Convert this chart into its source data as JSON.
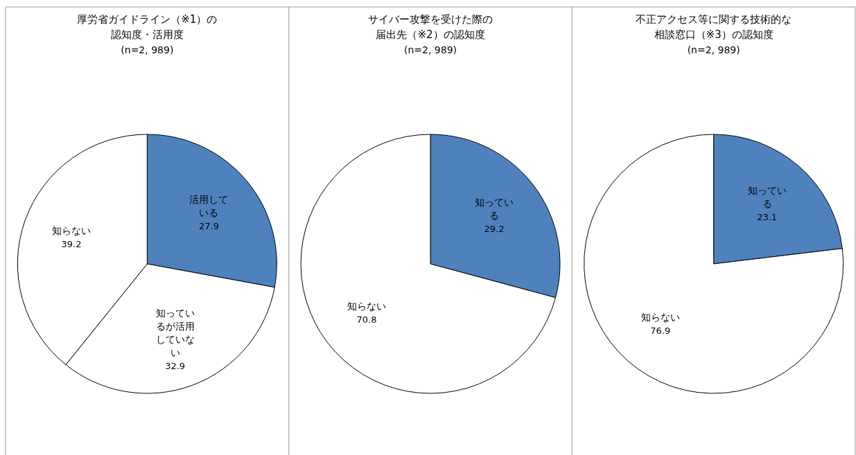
{
  "chart_data": [
    {
      "type": "pie",
      "title": "厚労省ガイドライン（※1）の認知度・活用度",
      "subtitle": "(n=2, 989)",
      "categories": [
        "活用している",
        "知っているが活用していない",
        "知らない"
      ],
      "values": [
        27.9,
        32.9,
        39.2
      ],
      "colors": [
        "#4f81bd",
        "#ffffff",
        "#ffffff"
      ],
      "data_labels": true
    },
    {
      "type": "pie",
      "title": "サイバー攻撃を受けた際の届出先（※2）の認知度",
      "subtitle": "(n=2, 989)",
      "categories": [
        "知っている",
        "知らない"
      ],
      "values": [
        29.2,
        70.8
      ],
      "colors": [
        "#4f81bd",
        "#ffffff"
      ],
      "data_labels": true
    },
    {
      "type": "pie",
      "title": "不正アクセス等に関する技術的な相談窓口（※3）の認知度",
      "subtitle": "(n=2, 989)",
      "categories": [
        "知っている",
        "知らない"
      ],
      "values": [
        23.1,
        76.9
      ],
      "colors": [
        "#4f81bd",
        "#ffffff"
      ],
      "data_labels": true
    }
  ]
}
